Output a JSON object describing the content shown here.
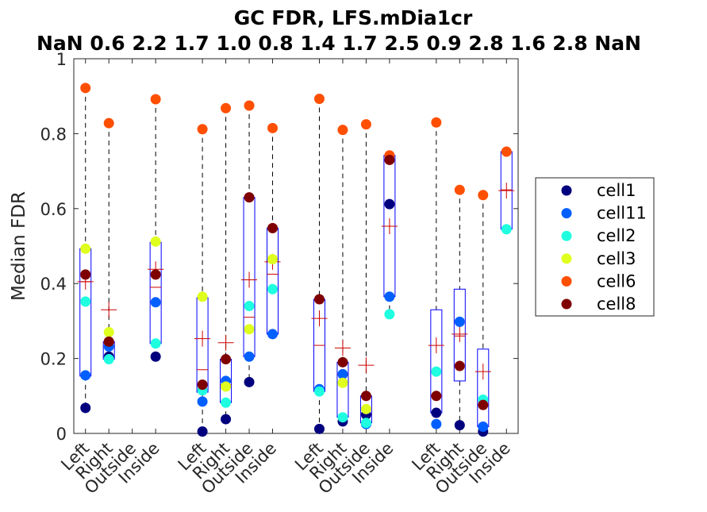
{
  "chart_data": {
    "type": "box",
    "title": "GC FDR, LFS.mDia1cr",
    "subtitle": "NaN 0.6 2.2 1.7 1.0 0.8 1.4 1.7 2.5 0.9 2.8 1.6 2.8 NaN",
    "ylabel": "Median FDR",
    "xlabel": "",
    "ylim": [
      0,
      1
    ],
    "yticks": [
      0,
      0.2,
      0.4,
      0.6,
      0.8,
      1
    ],
    "ytick_labels": [
      "0",
      "0.2",
      "0.4",
      "0.6",
      "0.8",
      "1"
    ],
    "categories": [
      "Left",
      "Right",
      "Outside",
      "Inside",
      "Left",
      "Right",
      "Outside",
      "Inside",
      "Left",
      "Right",
      "Outside",
      "Inside",
      "Left",
      "Right",
      "Outside",
      "Inside"
    ],
    "x_positions": [
      1,
      2,
      3,
      4,
      6,
      7,
      8,
      9,
      11,
      12,
      13,
      14,
      16,
      17,
      18,
      19
    ],
    "xlim": [
      0.5,
      19.5
    ],
    "grid": false,
    "legend_position": "right",
    "box_color": "#0000ff",
    "mean_color": "#cc0000",
    "whisker_color": "#000000",
    "series": [
      {
        "name": "cell1",
        "color": "#00007f",
        "values": [
          0.068,
          0.205,
          null,
          0.205,
          0.005,
          0.038,
          0.137,
          null,
          0.012,
          0.032,
          0.05,
          0.612,
          0.055,
          0.022,
          0.005,
          null
        ]
      },
      {
        "name": "cell11",
        "color": "#005fff",
        "values": [
          0.155,
          0.232,
          null,
          0.35,
          0.085,
          0.14,
          0.205,
          0.265,
          0.118,
          0.158,
          0.025,
          0.365,
          0.025,
          0.298,
          0.018,
          null
        ]
      },
      {
        "name": "cell2",
        "color": "#1fffe0",
        "values": [
          0.352,
          0.198,
          null,
          0.24,
          0.115,
          0.082,
          0.34,
          0.385,
          0.112,
          0.043,
          0.028,
          0.318,
          0.165,
          null,
          0.09,
          0.545
        ]
      },
      {
        "name": "cell3",
        "color": "#dfff1f",
        "values": [
          0.493,
          0.27,
          null,
          0.512,
          0.365,
          0.125,
          0.278,
          0.465,
          null,
          0.135,
          0.065,
          null,
          null,
          null,
          null,
          null
        ]
      },
      {
        "name": "cell6",
        "color": "#ff4f00",
        "values": [
          0.922,
          0.828,
          null,
          0.892,
          0.812,
          0.868,
          0.875,
          0.815,
          0.893,
          0.81,
          0.825,
          0.742,
          0.83,
          0.65,
          0.636,
          0.752
        ]
      },
      {
        "name": "cell8",
        "color": "#7f0000",
        "values": [
          0.424,
          0.245,
          null,
          0.424,
          0.13,
          0.198,
          0.63,
          0.548,
          0.358,
          0.19,
          0.1,
          0.73,
          0.1,
          0.18,
          0.076,
          null
        ]
      }
    ],
    "boxes": [
      {
        "q1": 0.153,
        "median": 0.405,
        "q3": 0.493,
        "whisker_low": 0.068,
        "whisker_high": 0.922,
        "mean": 0.405
      },
      {
        "q1": 0.198,
        "median": 0.24,
        "q3": 0.245,
        "whisker_low": 0.198,
        "whisker_high": 0.828,
        "mean": 0.33
      },
      null,
      {
        "q1": 0.24,
        "median": 0.39,
        "q3": 0.51,
        "whisker_low": 0.205,
        "whisker_high": 0.892,
        "mean": 0.438
      },
      {
        "q1": 0.11,
        "median": 0.17,
        "q3": 0.362,
        "whisker_low": 0.005,
        "whisker_high": 0.812,
        "mean": 0.253
      },
      {
        "q1": 0.082,
        "median": 0.13,
        "q3": 0.198,
        "whisker_low": 0.038,
        "whisker_high": 0.868,
        "mean": 0.242
      },
      {
        "q1": 0.205,
        "median": 0.31,
        "q3": 0.63,
        "whisker_low": 0.137,
        "whisker_high": 0.875,
        "mean": 0.41
      },
      {
        "q1": 0.265,
        "median": 0.425,
        "q3": 0.548,
        "whisker_low": 0.265,
        "whisker_high": 0.815,
        "mean": 0.458
      },
      {
        "q1": 0.112,
        "median": 0.235,
        "q3": 0.358,
        "whisker_low": 0.012,
        "whisker_high": 0.893,
        "mean": 0.307
      },
      {
        "q1": 0.043,
        "median": 0.158,
        "q3": 0.19,
        "whisker_low": 0.032,
        "whisker_high": 0.81,
        "mean": 0.228
      },
      {
        "q1": 0.028,
        "median": 0.05,
        "q3": 0.1,
        "whisker_low": 0.025,
        "whisker_high": 0.825,
        "mean": 0.182
      },
      {
        "q1": 0.365,
        "median": 0.612,
        "q3": 0.742,
        "whisker_low": 0.318,
        "whisker_high": 0.742,
        "mean": 0.553
      },
      {
        "q1": 0.055,
        "median": 0.1,
        "q3": 0.33,
        "whisker_low": 0.025,
        "whisker_high": 0.83,
        "mean": 0.235
      },
      {
        "q1": 0.14,
        "median": 0.26,
        "q3": 0.385,
        "whisker_low": 0.022,
        "whisker_high": 0.65,
        "mean": 0.265
      },
      {
        "q1": 0.018,
        "median": 0.076,
        "q3": 0.225,
        "whisker_low": 0.005,
        "whisker_high": 0.636,
        "mean": 0.165
      },
      {
        "q1": 0.545,
        "median": 0.65,
        "q3": 0.752,
        "whisker_low": 0.545,
        "whisker_high": 0.752,
        "mean": 0.648
      }
    ]
  }
}
